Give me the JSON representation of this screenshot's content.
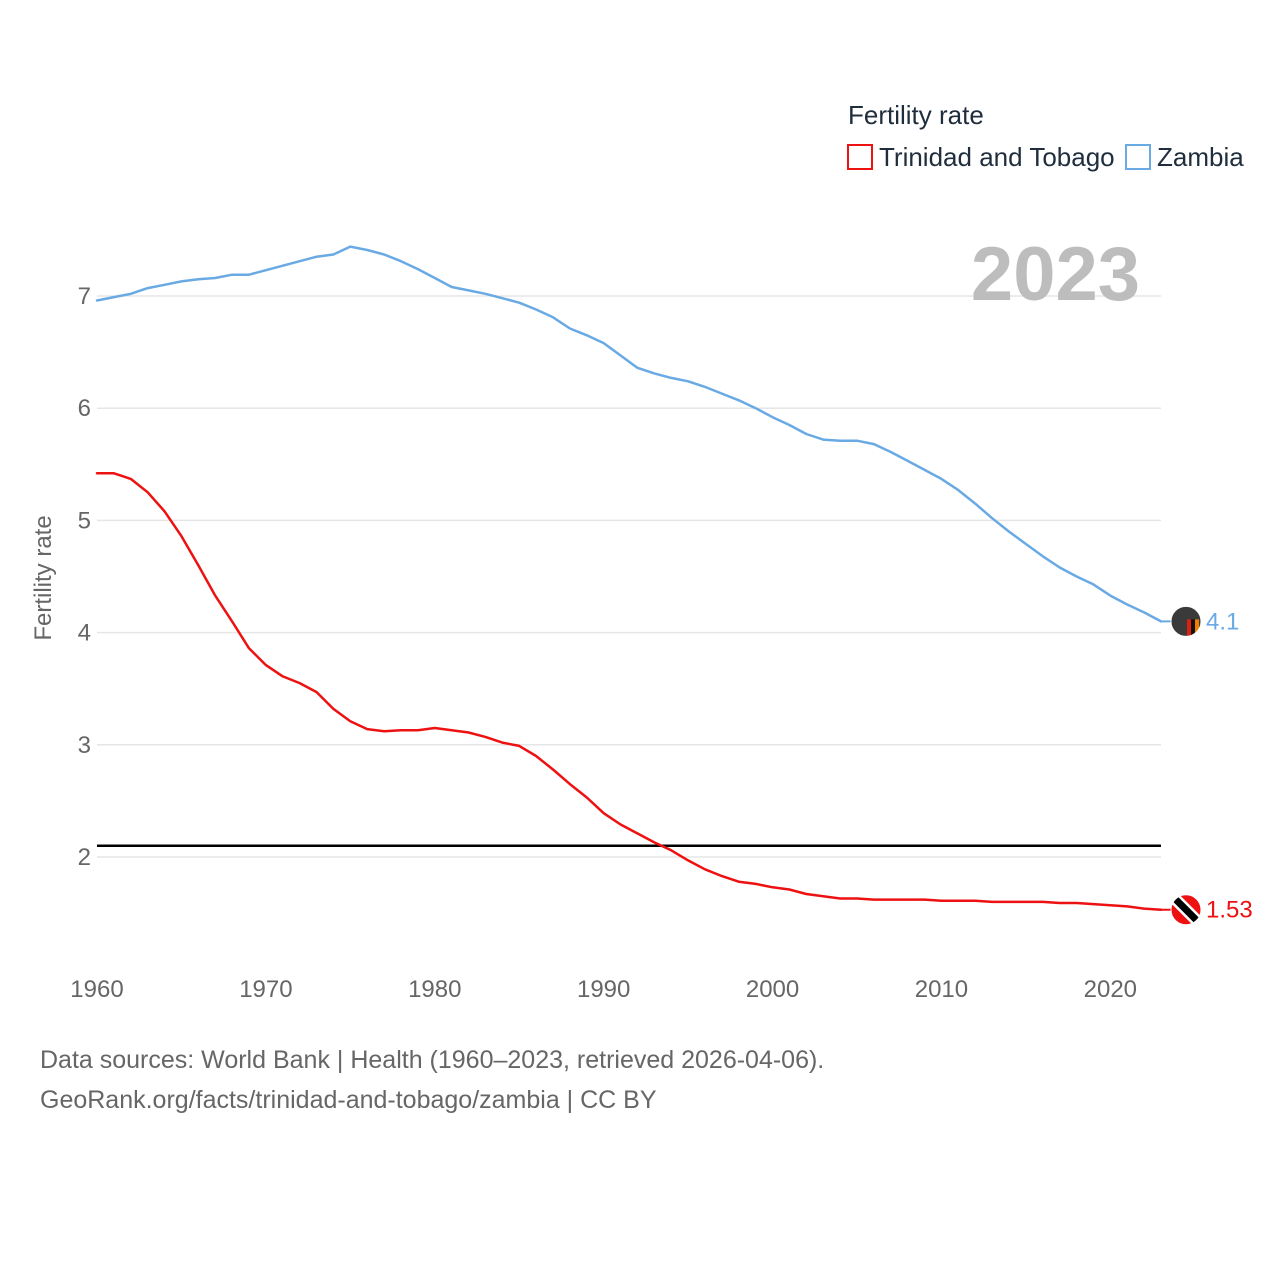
{
  "colors": {
    "trinidad": "#ee1111",
    "zambia": "#6aaae4",
    "reference": "#000000",
    "grid": "#e6e6e6",
    "tick_text": "#666666",
    "year_text": "#bdbdbd"
  },
  "chart_data": {
    "type": "line",
    "title": "",
    "legend_title": "Fertility rate",
    "legend_position": "top-right",
    "xlabel": "",
    "ylabel": "Fertility rate",
    "year_display": "2023",
    "xlim": [
      1960,
      2023
    ],
    "ylim": [
      1.2,
      7.8
    ],
    "x_ticks": [
      1960,
      1970,
      1980,
      1990,
      2000,
      2010,
      2020
    ],
    "y_ticks": [
      2,
      3,
      4,
      5,
      6,
      7
    ],
    "grid": true,
    "reference_line": {
      "y": 2.1,
      "label": ""
    },
    "x": [
      1960,
      1961,
      1962,
      1963,
      1964,
      1965,
      1966,
      1967,
      1968,
      1969,
      1970,
      1971,
      1972,
      1973,
      1974,
      1975,
      1976,
      1977,
      1978,
      1979,
      1980,
      1981,
      1982,
      1983,
      1984,
      1985,
      1986,
      1987,
      1988,
      1989,
      1990,
      1991,
      1992,
      1993,
      1994,
      1995,
      1996,
      1997,
      1998,
      1999,
      2000,
      2001,
      2002,
      2003,
      2004,
      2005,
      2006,
      2007,
      2008,
      2009,
      2010,
      2011,
      2012,
      2013,
      2014,
      2015,
      2016,
      2017,
      2018,
      2019,
      2020,
      2021,
      2022,
      2023
    ],
    "series": [
      {
        "key": "trinidad",
        "name": "Trinidad and Tobago",
        "end_label": "1.53",
        "values": [
          5.42,
          5.42,
          5.37,
          5.25,
          5.08,
          4.86,
          4.6,
          4.33,
          4.1,
          3.86,
          3.71,
          3.61,
          3.55,
          3.47,
          3.32,
          3.21,
          3.14,
          3.12,
          3.13,
          3.13,
          3.15,
          3.13,
          3.11,
          3.07,
          3.02,
          2.99,
          2.9,
          2.78,
          2.65,
          2.53,
          2.39,
          2.29,
          2.21,
          2.13,
          2.06,
          1.97,
          1.89,
          1.83,
          1.78,
          1.76,
          1.73,
          1.71,
          1.67,
          1.65,
          1.63,
          1.63,
          1.62,
          1.62,
          1.62,
          1.62,
          1.61,
          1.61,
          1.61,
          1.6,
          1.6,
          1.6,
          1.6,
          1.59,
          1.59,
          1.58,
          1.57,
          1.56,
          1.54,
          1.53
        ]
      },
      {
        "key": "zambia",
        "name": "Zambia",
        "end_label": "4.1",
        "values": [
          6.96,
          6.99,
          7.02,
          7.07,
          7.1,
          7.13,
          7.15,
          7.16,
          7.19,
          7.19,
          7.23,
          7.27,
          7.31,
          7.35,
          7.37,
          7.44,
          7.41,
          7.37,
          7.31,
          7.24,
          7.16,
          7.08,
          7.05,
          7.02,
          6.98,
          6.94,
          6.88,
          6.81,
          6.71,
          6.65,
          6.58,
          6.47,
          6.36,
          6.31,
          6.27,
          6.24,
          6.19,
          6.13,
          6.07,
          6.0,
          5.92,
          5.85,
          5.77,
          5.72,
          5.71,
          5.71,
          5.68,
          5.61,
          5.53,
          5.45,
          5.37,
          5.27,
          5.15,
          5.02,
          4.9,
          4.79,
          4.68,
          4.58,
          4.5,
          4.43,
          4.33,
          4.25,
          4.18,
          4.1
        ]
      }
    ]
  },
  "footer": {
    "line1": "Data sources: World Bank | Health (1960–2023, retrieved 2026-04-06).",
    "line2": "GeoRank.org/facts/trinidad-and-tobago/zambia | CC BY"
  }
}
